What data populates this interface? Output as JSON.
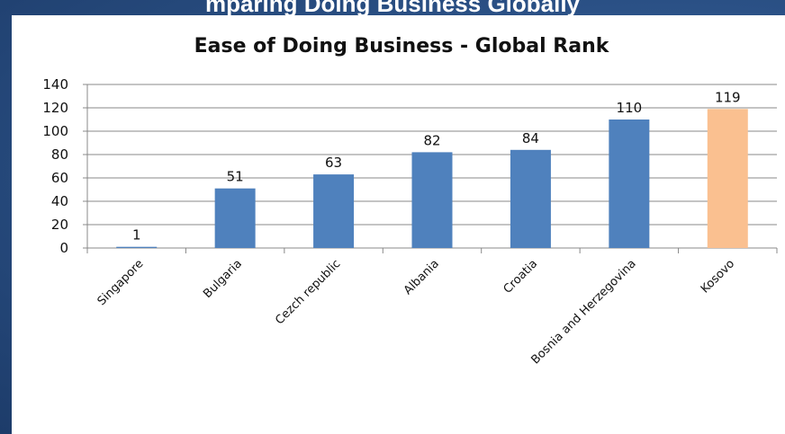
{
  "slide": {
    "title": "mparing Doing Business Globally"
  },
  "chart_data": {
    "type": "bar",
    "title": "Ease of Doing Business - Global Rank",
    "xlabel": "",
    "ylabel": "",
    "categories": [
      "Singapore",
      "Bulgaria",
      "Cezch republic",
      "Albania",
      "Croatia",
      "Bosnia and Herzegovina",
      "Kosovo"
    ],
    "values": [
      1,
      51,
      63,
      82,
      84,
      110,
      119
    ],
    "ylim": [
      0,
      140
    ],
    "yticks": [
      0,
      20,
      40,
      60,
      80,
      100,
      120,
      140
    ],
    "grid": true,
    "legend": "none",
    "colors": {
      "bar": "#4f81bd",
      "highlight": "#fac090",
      "highlight_category": "Kosovo",
      "grid": "#888888",
      "axis": "#888888"
    }
  }
}
